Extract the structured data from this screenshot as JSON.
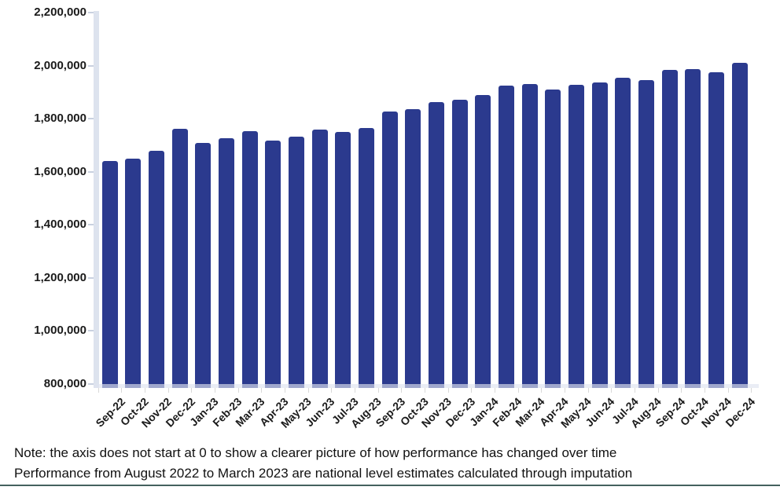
{
  "note": {
    "line1": "Note: the axis does not start at 0 to show a clearer picture of how performance has changed over time",
    "line2": "Performance from August 2022 to March 2023 are national level estimates calculated through imputation"
  },
  "colors": {
    "bar": "#2b3a8e",
    "y_axis_strip": "#dde3ee",
    "x_axis_strip": "rgba(223,227,239,0.65)",
    "tick": "#d9d9d9",
    "axis_label": "#1a1a1a",
    "note_text": "#111111",
    "bottom_rule": "#44615e"
  },
  "chart_data": {
    "type": "bar",
    "title": "",
    "xlabel": "",
    "ylabel": "",
    "ylim": [
      800000,
      2200000
    ],
    "ytick_step": 200000,
    "ytick_labels": [
      "800,000",
      "1,000,000",
      "1,200,000",
      "1,400,000",
      "1,600,000",
      "1,800,000",
      "2,000,000",
      "2,200,000"
    ],
    "grid": false,
    "legend": "none",
    "x_label_rotation_deg": -45,
    "categories": [
      "Sep-22",
      "Oct-22",
      "Nov-22",
      "Dec-22",
      "Jan-23",
      "Feb-23",
      "Mar-23",
      "Apr-23",
      "May-23",
      "Jun-23",
      "Jul-23",
      "Aug-23",
      "Sep-23",
      "Oct-23",
      "Nov-23",
      "Dec-23",
      "Jan-24",
      "Feb-24",
      "Mar-24",
      "Apr-24",
      "May-24",
      "Jun-24",
      "Jul-24",
      "Aug-24",
      "Sep-24",
      "Oct-24",
      "Nov-24",
      "Dec-24"
    ],
    "values": [
      1641000,
      1648000,
      1678000,
      1763000,
      1710000,
      1725000,
      1754000,
      1719000,
      1731000,
      1760000,
      1751000,
      1766000,
      1828000,
      1837000,
      1864000,
      1871000,
      1890000,
      1926000,
      1932000,
      1911000,
      1929000,
      1938000,
      1955000,
      1944000,
      1985000,
      1988000,
      1976000,
      2012000
    ]
  }
}
